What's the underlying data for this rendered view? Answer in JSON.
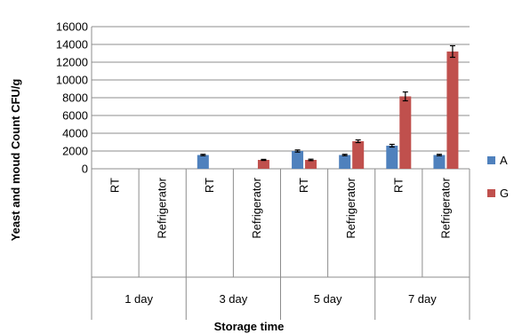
{
  "chart_data": {
    "type": "bar",
    "title": "",
    "ylabel": "Yeast and moud Count CFU/g",
    "xlabel": "Storage time",
    "ylim": [
      0,
      16000
    ],
    "yticks": [
      0,
      2000,
      4000,
      6000,
      8000,
      10000,
      12000,
      14000,
      16000
    ],
    "grid": true,
    "legend_position": "right",
    "groups": [
      {
        "label": "1 day",
        "categories": [
          "RT",
          "Refrigerator"
        ]
      },
      {
        "label": "3 day",
        "categories": [
          "RT",
          "Refrigerator"
        ]
      },
      {
        "label": "5 day",
        "categories": [
          "RT",
          "Refrigerator"
        ]
      },
      {
        "label": "7 day",
        "categories": [
          "RT",
          "Refrigerator"
        ]
      }
    ],
    "categories": [
      "RT",
      "Refrigerator",
      "RT",
      "Refrigerator",
      "RT",
      "Refrigerator",
      "RT",
      "Refrigerator"
    ],
    "series": [
      {
        "name": "A",
        "color": "#4f81bd",
        "values": [
          0,
          0,
          1550,
          0,
          2000,
          1550,
          2600,
          1550
        ],
        "errors": [
          0,
          0,
          80,
          0,
          120,
          80,
          150,
          80
        ]
      },
      {
        "name": "G",
        "color": "#c0504d",
        "values": [
          0,
          0,
          0,
          1000,
          1000,
          3100,
          8150,
          13200
        ],
        "errors": [
          0,
          0,
          0,
          60,
          80,
          150,
          500,
          650
        ]
      }
    ]
  }
}
